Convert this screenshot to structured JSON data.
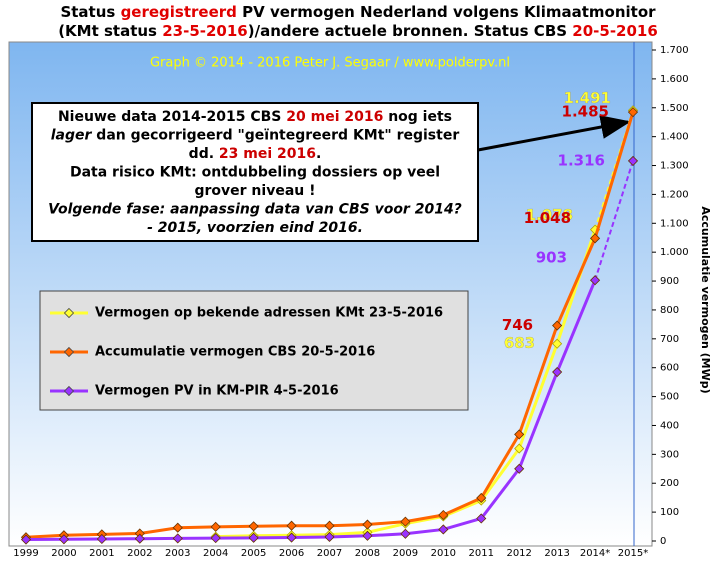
{
  "chart_data": {
    "type": "line",
    "title": [
      [
        "Status ",
        "geregistreerd",
        " PV vermogen Nederland volgens Klimaatmonitor"
      ],
      [
        "(KMt status ",
        "23-5-2016",
        ")/andere actuele bronnen.  Status CBS ",
        "20-5-2016"
      ]
    ],
    "subtitle": "Graph  ©  2014 - 2016 Peter J. Segaar / www.polderpv.nl",
    "annotation": [
      [
        "Nieuwe data 2014-2015 CBS ",
        "20 mei 2016",
        " nog iets"
      ],
      [
        "lager",
        " dan gecorrigeerd \"geïntegreerd KMt\" register"
      ],
      [
        "dd. ",
        "23 mei 2016",
        "."
      ],
      [
        "Data risico  KMt: ontdubbeling  dossiers op veel"
      ],
      [
        "grover niveau !"
      ],
      [
        "Volgende fase: aanpassing data van CBS voor 2014?"
      ],
      [
        "- 2015, voorzien eind 2016."
      ]
    ],
    "y_label": "Accumulatie vermogen (MWp)",
    "categories": [
      "1999",
      "2000",
      "2001",
      "2002",
      "2003",
      "2004",
      "2005",
      "2006",
      "2007",
      "2008",
      "2009",
      "2010",
      "2011",
      "2012",
      "2013",
      "2014*",
      "2015*"
    ],
    "series": [
      {
        "name": "Vermogen op bekende adressen KMt 23-5-2016",
        "color": "#ffff33",
        "dashed_last": true,
        "values": [
          null,
          null,
          null,
          null,
          null,
          15,
          18,
          20,
          22,
          30,
          60,
          85,
          140,
          320,
          683,
          1078,
          1491
        ],
        "value_labels": [
          null,
          null,
          null,
          null,
          null,
          null,
          null,
          null,
          null,
          null,
          null,
          null,
          null,
          null,
          "683",
          "1.078",
          "1.491"
        ]
      },
      {
        "name": "Accumulatie vermogen CBS 20-5-2016",
        "color": "#ff6600",
        "dashed_last": false,
        "values": [
          13,
          20,
          23,
          26,
          46,
          49,
          51,
          53,
          53,
          57,
          67,
          90,
          149,
          369,
          746,
          1048,
          1485
        ],
        "value_labels": [
          null,
          null,
          null,
          null,
          null,
          null,
          null,
          null,
          null,
          null,
          null,
          null,
          null,
          null,
          "746",
          "1.048",
          "1.485"
        ]
      },
      {
        "name": "Vermogen PV in KM-PIR 4-5-2016",
        "color": "#9933ff",
        "dashed_last": true,
        "values": [
          5,
          6,
          7,
          8,
          9,
          10,
          11,
          12,
          14,
          18,
          25,
          40,
          78,
          250,
          585,
          903,
          1316
        ],
        "value_labels": [
          null,
          null,
          null,
          null,
          null,
          null,
          null,
          null,
          null,
          null,
          null,
          null,
          null,
          null,
          null,
          "903",
          "1.316"
        ]
      }
    ],
    "ylim": [
      0,
      1700
    ],
    "yticks": [
      0,
      100,
      200,
      300,
      400,
      500,
      600,
      700,
      800,
      900,
      {
        "value": 1000,
        "label": "1.000"
      },
      {
        "value": 1100,
        "label": "1.100"
      },
      {
        "value": 1200,
        "label": "1.200"
      },
      {
        "value": 1300,
        "label": "1.300"
      },
      {
        "value": 1400,
        "label": "1.400"
      },
      {
        "value": 1500,
        "label": "1.500"
      },
      {
        "value": 1600,
        "label": "1.600"
      },
      {
        "value": 1700,
        "label": "1.700"
      }
    ],
    "grid": false
  }
}
